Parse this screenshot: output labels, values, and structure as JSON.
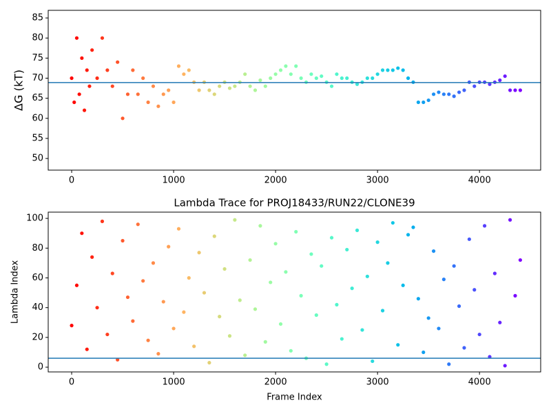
{
  "chart_data": [
    {
      "type": "scatter",
      "ylabel": "ΔG (kT)",
      "colormap": "rainbow_r",
      "x": [
        0,
        25,
        50,
        75,
        100,
        125,
        150,
        175,
        200,
        250,
        300,
        350,
        400,
        450,
        500,
        550,
        600,
        650,
        700,
        750,
        800,
        850,
        900,
        950,
        1000,
        1050,
        1100,
        1150,
        1200,
        1250,
        1300,
        1350,
        1400,
        1450,
        1500,
        1550,
        1600,
        1650,
        1700,
        1750,
        1800,
        1850,
        1900,
        1950,
        2000,
        2050,
        2100,
        2150,
        2200,
        2250,
        2300,
        2350,
        2400,
        2450,
        2500,
        2550,
        2600,
        2650,
        2700,
        2750,
        2800,
        2850,
        2900,
        2950,
        3000,
        3050,
        3100,
        3150,
        3200,
        3250,
        3300,
        3350,
        3400,
        3450,
        3500,
        3550,
        3600,
        3650,
        3700,
        3750,
        3800,
        3850,
        3900,
        3950,
        4000,
        4050,
        4100,
        4150,
        4200,
        4250,
        4300,
        4350,
        4400
      ],
      "values": [
        70,
        64,
        80,
        66,
        75,
        62,
        72,
        68,
        77,
        70,
        80,
        72,
        68,
        74,
        60,
        66,
        72,
        66,
        70,
        64,
        68,
        63,
        66,
        67,
        64,
        73,
        71,
        72,
        69,
        67,
        69,
        67,
        66,
        68,
        69,
        67.5,
        68,
        69,
        71,
        68,
        67,
        69.5,
        68,
        70,
        71,
        72,
        73,
        71,
        73,
        70,
        69,
        71,
        70,
        70.5,
        69,
        68,
        71,
        70,
        70,
        69,
        68.5,
        69,
        70,
        70,
        71,
        72,
        72,
        72,
        72.5,
        72,
        70,
        69,
        64,
        64,
        64.5,
        66,
        66.5,
        66,
        66,
        65.5,
        66.5,
        67,
        69,
        68,
        69,
        69,
        68.5,
        69,
        69.5,
        70.5,
        67,
        67,
        67
      ],
      "hline": {
        "value": 68.9,
        "color": "#1f77b4"
      },
      "xlim": [
        -230,
        4600
      ],
      "xticks": [
        0,
        1000,
        2000,
        3000,
        4000
      ],
      "ylim": [
        47.1,
        86.9
      ],
      "yticks": [
        50,
        55,
        60,
        65,
        70,
        75,
        80,
        85
      ]
    },
    {
      "type": "scatter",
      "title": "Lambda Trace for PROJ18433/RUN22/CLONE39",
      "xlabel": "Frame Index",
      "ylabel": "Lambda Index",
      "colormap": "rainbow_r",
      "x": [
        0,
        50,
        100,
        150,
        200,
        250,
        300,
        350,
        400,
        450,
        500,
        550,
        600,
        650,
        700,
        750,
        800,
        850,
        900,
        950,
        1000,
        1050,
        1100,
        1150,
        1200,
        1250,
        1300,
        1350,
        1400,
        1450,
        1500,
        1550,
        1600,
        1650,
        1700,
        1750,
        1800,
        1850,
        1900,
        1950,
        2000,
        2050,
        2100,
        2150,
        2200,
        2250,
        2300,
        2350,
        2400,
        2450,
        2500,
        2550,
        2600,
        2650,
        2700,
        2750,
        2800,
        2850,
        2900,
        2950,
        3000,
        3050,
        3100,
        3150,
        3200,
        3250,
        3300,
        3350,
        3400,
        3450,
        3500,
        3550,
        3600,
        3650,
        3700,
        3750,
        3800,
        3850,
        3900,
        3950,
        4000,
        4050,
        4100,
        4150,
        4200,
        4250,
        4300,
        4350,
        4400
      ],
      "values": [
        28,
        55,
        90,
        12,
        74,
        40,
        98,
        22,
        63,
        5,
        85,
        47,
        31,
        96,
        58,
        18,
        70,
        9,
        44,
        81,
        26,
        93,
        37,
        60,
        14,
        77,
        50,
        3,
        88,
        34,
        66,
        21,
        99,
        45,
        8,
        72,
        39,
        95,
        17,
        57,
        83,
        29,
        64,
        11,
        91,
        48,
        6,
        76,
        35,
        68,
        2,
        87,
        42,
        19,
        79,
        53,
        92,
        25,
        61,
        4,
        84,
        38,
        70,
        97,
        15,
        55,
        89,
        94,
        46,
        10,
        33,
        78,
        26,
        59,
        2,
        68,
        41,
        13,
        86,
        52,
        22,
        95,
        7,
        63,
        30,
        1,
        99,
        48,
        72
      ],
      "hline": {
        "value": 6,
        "color": "#1f77b4"
      },
      "xlim": [
        -230,
        4600
      ],
      "xticks": [
        0,
        1000,
        2000,
        3000,
        4000
      ],
      "ylim": [
        -3.2,
        104.2
      ],
      "yticks": [
        0,
        20,
        40,
        60,
        80,
        100
      ]
    }
  ]
}
